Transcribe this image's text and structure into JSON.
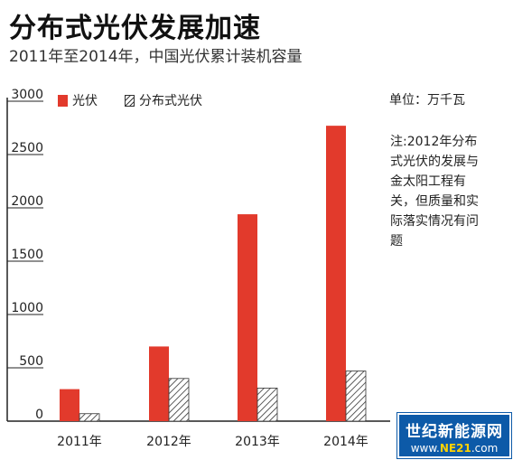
{
  "title": "分布式光伏发展加速",
  "subtitle": "2011年至2014年，中国光伏累计装机容量",
  "unit_text": "单位：万千瓦",
  "note": "注:2012年分布式光伏的发展与金太阳工程有关，但质量和实际落实情况有问题",
  "legend": {
    "series1": "光伏",
    "series2": "分布式光伏"
  },
  "watermark": {
    "line1": "世纪新能源网",
    "line2_pre": "www.",
    "line2_acc": "NE21",
    "line2_post": ".com"
  },
  "colors": {
    "series1": "#e23a2c",
    "series2_hatch": "#333333",
    "axis": "#222222"
  },
  "chart_data": {
    "type": "bar",
    "categories": [
      "2011年",
      "2012年",
      "2013年",
      "2014年"
    ],
    "series": [
      {
        "name": "光伏",
        "values": [
          300,
          700,
          1940,
          2770
        ],
        "style": "solid-red"
      },
      {
        "name": "分布式光伏",
        "values": [
          70,
          400,
          310,
          470
        ],
        "style": "hatched"
      }
    ],
    "ylim": [
      0,
      3000
    ],
    "yticks": [
      0,
      500,
      1000,
      1500,
      2000,
      2500,
      3000
    ],
    "grid": false,
    "legend_position": "top-left"
  }
}
